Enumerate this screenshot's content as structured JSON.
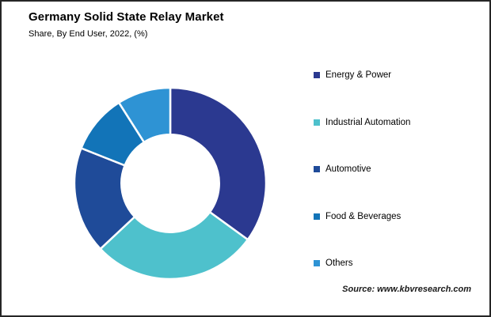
{
  "header": {
    "title": "Germany Solid State Relay Market",
    "subtitle": "Share, By End User, 2022, (%)"
  },
  "chart_data": {
    "type": "pie",
    "subtype": "donut",
    "title": "Germany Solid State Relay Market Share, By End User, 2022, (%)",
    "unit": "percent",
    "categories": [
      "Energy & Power",
      "Industrial Automation",
      "Automotive",
      "Food & Beverages",
      "Others"
    ],
    "values": [
      35,
      28,
      18,
      10,
      9
    ],
    "values_note": "No numeric data labels are rendered in the chart; values estimated from arc angles",
    "colors": [
      "#2B3990",
      "#4EC1CC",
      "#1F4B99",
      "#1274B8",
      "#2E93D4"
    ],
    "start_angle_deg": 0,
    "direction": "clockwise",
    "donut_hole_ratio": 0.51,
    "separator_color": "#FFFFFF",
    "legend_position": "right",
    "legend_marker": "square"
  },
  "source": {
    "text": "Source: www.kbvresearch.com"
  }
}
